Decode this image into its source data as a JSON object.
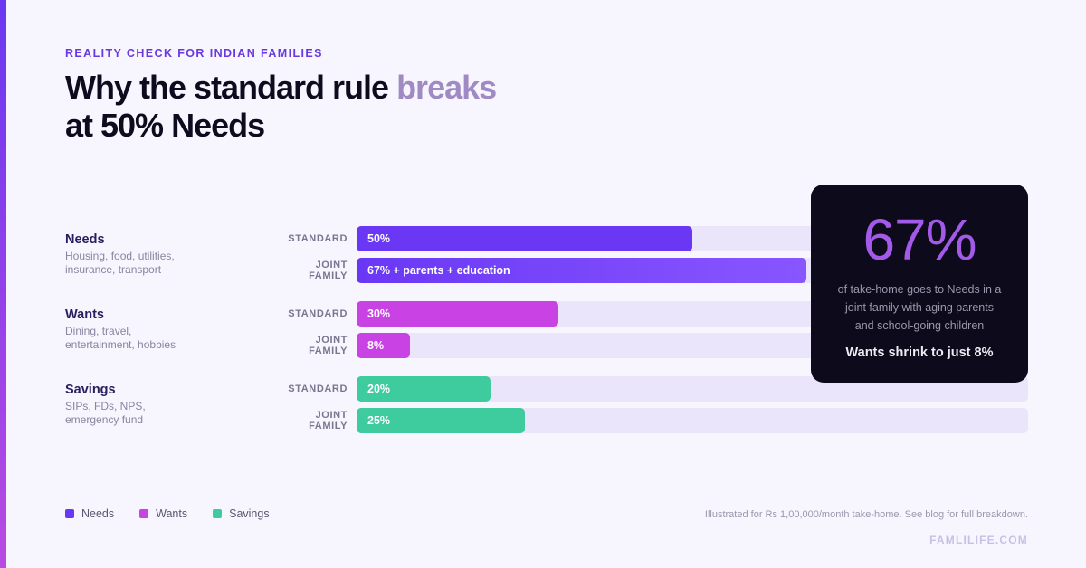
{
  "header": {
    "kicker": "REALITY CHECK FOR INDIAN FAMILIES",
    "title_part1": "Why the standard rule ",
    "title_highlight": "breaks",
    "title_line2": "at 50% Needs"
  },
  "chart_data": {
    "type": "bar",
    "orientation": "horizontal",
    "xlim": [
      0,
      100
    ],
    "unit": "%",
    "categories": [
      {
        "name": "Needs",
        "description": "Housing, food, utilities,\ninsurance, transport",
        "color": "#6a38f5",
        "rows": [
          {
            "label": "STANDARD",
            "value": 50,
            "text": "50%"
          },
          {
            "label": "JOINT\nFAMILY",
            "value": 67,
            "text": "67% + parents + education"
          }
        ]
      },
      {
        "name": "Wants",
        "description": "Dining, travel,\nentertainment, hobbies",
        "color": "#c842e4",
        "rows": [
          {
            "label": "STANDARD",
            "value": 30,
            "text": "30%"
          },
          {
            "label": "JOINT\nFAMILY",
            "value": 8,
            "text": "8%"
          }
        ]
      },
      {
        "name": "Savings",
        "description": "SIPs, FDs, NPS,\nemergency fund",
        "color": "#3ecb9e",
        "rows": [
          {
            "label": "STANDARD",
            "value": 20,
            "text": "20%"
          },
          {
            "label": "JOINT\nFAMILY",
            "value": 25,
            "text": "25%"
          }
        ]
      }
    ],
    "legend": [
      "Needs",
      "Wants",
      "Savings"
    ],
    "legend_placement": "bottom-left"
  },
  "callout": {
    "big_value": "67%",
    "description": "of take-home goes to Needs in a\njoint family with aging parents\nand school-going children",
    "note": "Wants shrink to just 8%"
  },
  "footer": {
    "footnote": "Illustrated for Rs 1,00,000/month take-home. See blog for full breakdown.",
    "brand": "FAMLILIFE.COM"
  },
  "colors": {
    "needs": "#6a38f5",
    "wants": "#c842e4",
    "savings": "#3ecb9e",
    "callout_bg": "#0d0a1c",
    "callout_accent": "#a45ae8"
  }
}
